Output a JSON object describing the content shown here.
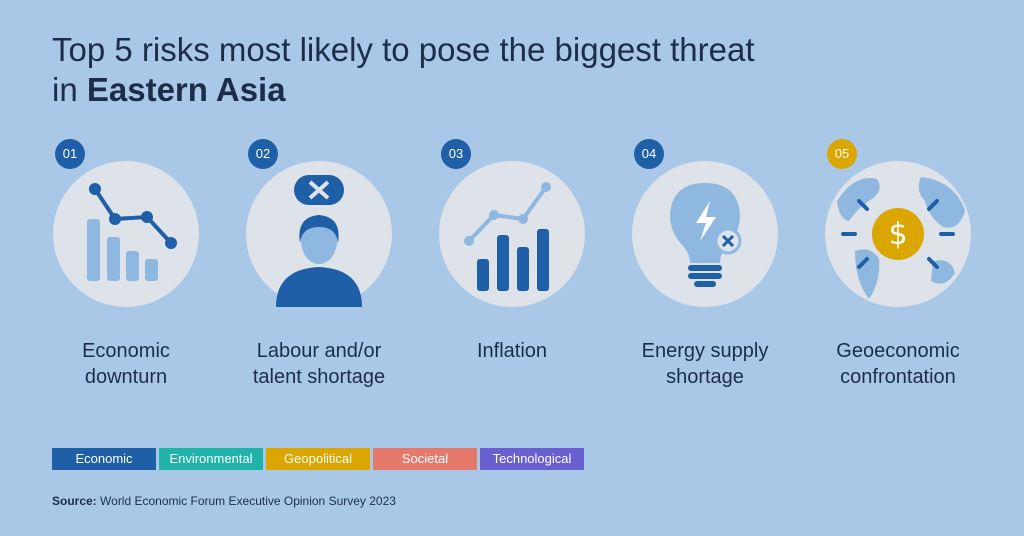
{
  "title": {
    "line1": "Top 5 risks most likely to pose the biggest threat",
    "line2_prefix": "in",
    "emphasis": "Eastern Asia"
  },
  "risks": [
    {
      "number": "01",
      "label": "Economic downturn",
      "color": "#1f5fa8"
    },
    {
      "number": "02",
      "label": "Labour and/or talent shortage",
      "color": "#1f5fa8"
    },
    {
      "number": "03",
      "label": "Inflation",
      "color": "#1f5fa8"
    },
    {
      "number": "04",
      "label": "Energy supply shortage",
      "color": "#1f5fa8"
    },
    {
      "number": "05",
      "label": "Geoeconomic confrontation",
      "color": "#dca600"
    }
  ],
  "legend": [
    {
      "name": "Economic",
      "color": "#1f5fa8"
    },
    {
      "name": "Environmental",
      "color": "#1fb3a9"
    },
    {
      "name": "Geopolitical",
      "color": "#dca600"
    },
    {
      "name": "Societal",
      "color": "#e4796c"
    },
    {
      "name": "Technological",
      "color": "#6a5fd0"
    }
  ],
  "source": {
    "label": "Source:",
    "text": "World Economic Forum Executive Opinion Survey 2023"
  }
}
